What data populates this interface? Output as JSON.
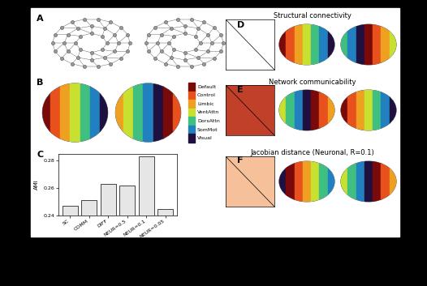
{
  "panel_labels": [
    "A",
    "B",
    "C",
    "D",
    "E",
    "F"
  ],
  "panel_titles": [
    "Structural connectivity",
    "Network communicability",
    "Jacobian distance (Neuronal, R=0.1)"
  ],
  "networks": {
    "labels": [
      "Default",
      "Control",
      "Limbic",
      "VentAttn",
      "DorsAttn",
      "SomMot",
      "Visual"
    ],
    "colors": [
      "#7a0a0a",
      "#e8501c",
      "#f0a020",
      "#c8e030",
      "#40c080",
      "#2080c0",
      "#201040"
    ]
  },
  "chart_data": {
    "type": "bar",
    "y_label": "AMI",
    "categories": [
      "SC",
      "COMM",
      "DIFF",
      "NEUR=0.5",
      "NEUR=0.1",
      "NEUR=0.05"
    ],
    "values": [
      0.247,
      0.251,
      0.263,
      0.262,
      0.283,
      0.245
    ],
    "color": "#e6e6e6",
    "ylim": [
      0.24,
      0.285
    ],
    "yticks": [
      0.24,
      0.26,
      0.28
    ]
  }
}
